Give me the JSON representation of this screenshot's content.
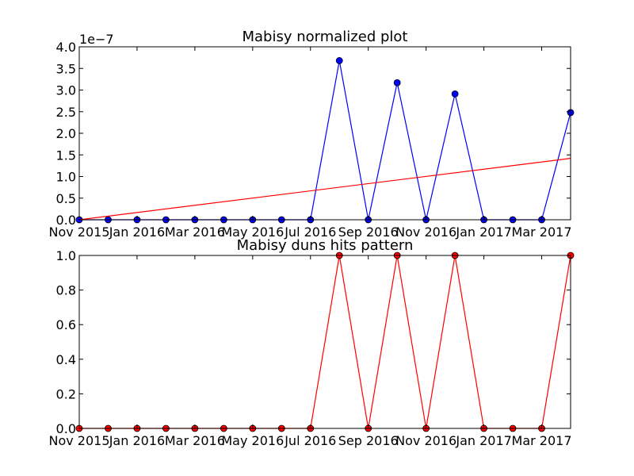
{
  "chart_data": [
    {
      "type": "line",
      "title": "Mabisy normalized plot",
      "y_offset_label": "1e−7",
      "x": [
        "2015-11",
        "2015-12",
        "2016-01",
        "2016-02",
        "2016-03",
        "2016-04",
        "2016-05",
        "2016-06",
        "2016-07",
        "2016-08",
        "2016-09",
        "2016-10",
        "2016-11",
        "2016-12",
        "2017-01",
        "2017-02",
        "2017-03",
        "2017-04"
      ],
      "x_ticks": [
        "2015-11",
        "2016-01",
        "2016-03",
        "2016-05",
        "2016-07",
        "2016-09",
        "2016-11",
        "2017-01",
        "2017-03"
      ],
      "x_tick_labels": [
        "Nov 2015",
        "Jan 2016",
        "Mar 2016",
        "May 2016",
        "Jul 2016",
        "Sep 2016",
        "Nov 2016",
        "Jan 2017",
        "Mar 2017"
      ],
      "xlim": [
        "2015-11",
        "2017-04"
      ],
      "ylim": [
        0,
        4.0
      ],
      "y_ticks": [
        "0.0",
        "0.5",
        "1.0",
        "1.5",
        "2.0",
        "2.5",
        "3.0",
        "3.5",
        "4.0"
      ],
      "series": [
        {
          "values": [
            0,
            0,
            0,
            0,
            0,
            0,
            0,
            0,
            0,
            3.68,
            0,
            3.17,
            0,
            2.91,
            0,
            0,
            0,
            2.48
          ],
          "color": "#0000ff",
          "marker": "circle"
        },
        {
          "line": [
            0,
            1.42
          ],
          "color": "#ff0000",
          "marker": "none"
        }
      ],
      "grid": false
    },
    {
      "type": "line",
      "title": "Mabisy duns hits pattern",
      "x": [
        "2015-11",
        "2015-12",
        "2016-01",
        "2016-02",
        "2016-03",
        "2016-04",
        "2016-05",
        "2016-06",
        "2016-07",
        "2016-08",
        "2016-09",
        "2016-10",
        "2016-11",
        "2016-12",
        "2017-01",
        "2017-02",
        "2017-03",
        "2017-04"
      ],
      "x_ticks": [
        "2015-11",
        "2016-01",
        "2016-03",
        "2016-05",
        "2016-07",
        "2016-09",
        "2016-11",
        "2017-01",
        "2017-03"
      ],
      "x_tick_labels": [
        "Nov 2015",
        "Jan 2016",
        "Mar 2016",
        "May 2016",
        "Jul 2016",
        "Sep 2016",
        "Nov 2016",
        "Jan 2017",
        "Mar 2017"
      ],
      "xlim": [
        "2015-11",
        "2017-04"
      ],
      "ylim": [
        0,
        1.0
      ],
      "y_ticks": [
        "0.0",
        "0.2",
        "0.4",
        "0.6",
        "0.8",
        "1.0"
      ],
      "series": [
        {
          "values": [
            0,
            0,
            0,
            0,
            0,
            0,
            0,
            0,
            0,
            1,
            0,
            1,
            0,
            1,
            0,
            0,
            0,
            1
          ],
          "color": "#ff0000",
          "marker": "circle"
        }
      ],
      "grid": false
    }
  ]
}
